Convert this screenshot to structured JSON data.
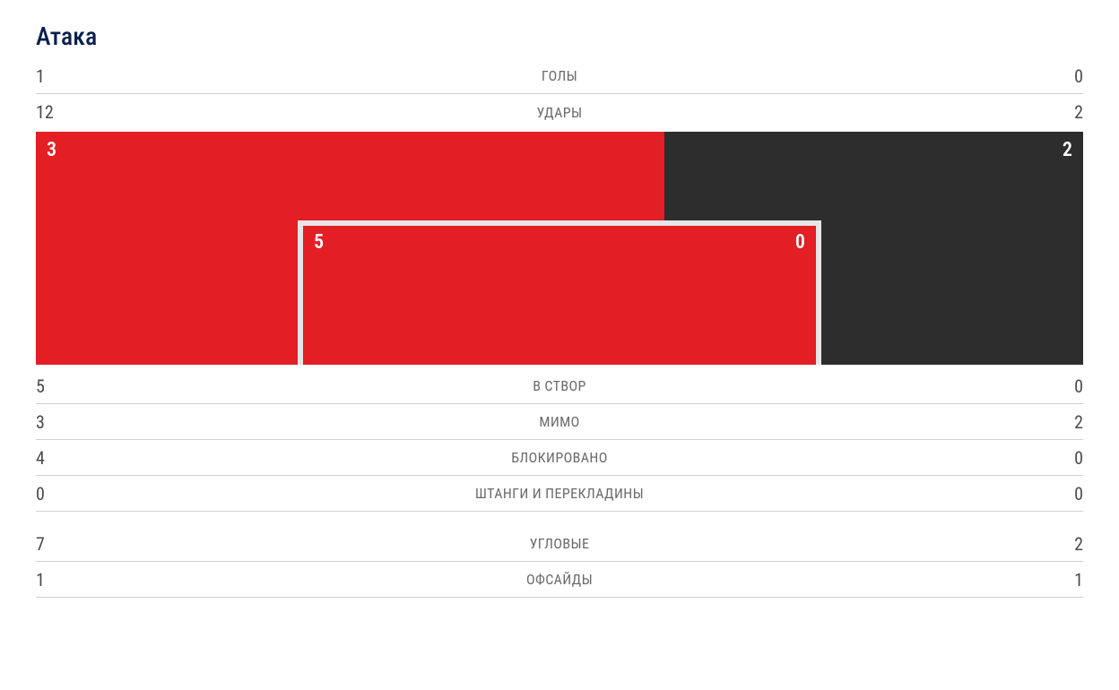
{
  "title": "Атака",
  "colors": {
    "home": "#e31e24",
    "away": "#2d2d2d",
    "frame": "#e6e6e6",
    "divider": "#d0d0d0",
    "title": "#0a1f4d",
    "value_text": "#4a4a4a",
    "label_text": "#6b6b6b",
    "background": "#ffffff"
  },
  "goal_viz": {
    "outer": {
      "home": 3,
      "away": 2,
      "home_pct": 60,
      "away_pct": 40
    },
    "inner": {
      "home": 5,
      "away": 0,
      "home_pct": 100,
      "away_pct": 0,
      "frame_left_pct": 25,
      "frame_width_pct": 50
    }
  },
  "rows_top": [
    {
      "label": "ГОЛЫ",
      "home": 1,
      "away": 0
    },
    {
      "label": "УДАРЫ",
      "home": 12,
      "away": 2
    }
  ],
  "rows_mid": [
    {
      "label": "В СТВОР",
      "home": 5,
      "away": 0
    },
    {
      "label": "МИМО",
      "home": 3,
      "away": 2
    },
    {
      "label": "БЛОКИРОВАНО",
      "home": 4,
      "away": 0
    },
    {
      "label": "ШТАНГИ И ПЕРЕКЛАДИНЫ",
      "home": 0,
      "away": 0
    }
  ],
  "rows_bottom": [
    {
      "label": "УГЛОВЫЕ",
      "home": 7,
      "away": 2
    },
    {
      "label": "ОФСАЙДЫ",
      "home": 1,
      "away": 1
    }
  ],
  "typography": {
    "title_fontsize": 28,
    "value_fontsize": 20,
    "label_fontsize": 16,
    "viz_value_fontsize": 22
  }
}
